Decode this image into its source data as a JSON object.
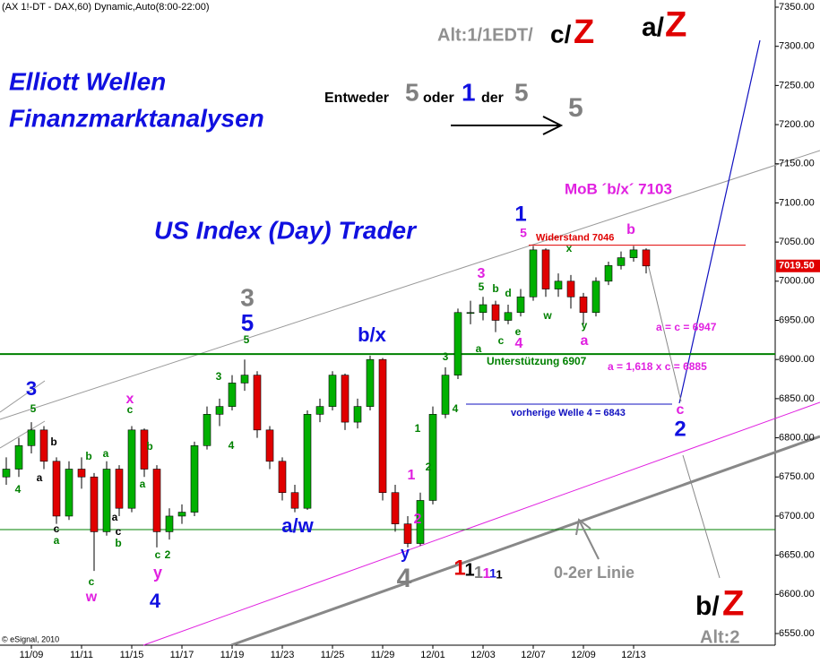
{
  "chart_data": {
    "type": "candlestick",
    "title": "(AX 1!-DT - DAX,60) Dynamic,Auto(8:00-22:00)",
    "credit": "© eSignal, 2010",
    "categories": [
      null,
      null,
      "11/09",
      null,
      null,
      null,
      "11/11",
      null,
      null,
      null,
      "11/15",
      null,
      null,
      null,
      "11/17",
      null,
      null,
      null,
      "11/19",
      null,
      null,
      null,
      "11/23",
      null,
      null,
      null,
      "11/25",
      null,
      null,
      null,
      "11/29",
      null,
      null,
      null,
      "12/01",
      null,
      null,
      null,
      "12/03",
      null,
      null,
      null,
      "12/07",
      null,
      null,
      null,
      "12/09",
      null,
      null,
      null,
      "12/13",
      null
    ],
    "open": [
      6750,
      6760,
      6790,
      6810,
      6770,
      6700,
      6760,
      6750,
      6680,
      6760,
      6710,
      6810,
      6760,
      6680,
      6700,
      6705,
      6790,
      6830,
      6840,
      6870,
      6880,
      6810,
      6770,
      6730,
      6710,
      6830,
      6840,
      6880,
      6820,
      6840,
      6900,
      6730,
      6690,
      6665,
      6720,
      6830,
      6880,
      6960,
      6960,
      6970,
      6950,
      6960,
      6980,
      7040,
      6990,
      7000,
      6980,
      6960,
      7000,
      7020,
      7030,
      7040
    ],
    "high": [
      6775,
      6800,
      6820,
      6815,
      6775,
      6770,
      6775,
      6755,
      6770,
      6765,
      6815,
      6812,
      6765,
      6710,
      6715,
      6795,
      6840,
      6850,
      6880,
      6900,
      6885,
      6815,
      6775,
      6740,
      6835,
      6850,
      6885,
      6882,
      6850,
      6905,
      6902,
      6740,
      6700,
      6730,
      6840,
      6890,
      6965,
      6975,
      6980,
      6975,
      6970,
      6990,
      7045,
      7042,
      7010,
      7008,
      6985,
      7005,
      7025,
      7038,
      7045,
      7042
    ],
    "low": [
      6740,
      6750,
      6780,
      6760,
      6690,
      6695,
      6735,
      6630,
      6675,
      6700,
      6705,
      6750,
      6660,
      6670,
      6690,
      6700,
      6785,
      6815,
      6835,
      6860,
      6800,
      6760,
      6720,
      6705,
      6708,
      6820,
      6835,
      6810,
      6812,
      6835,
      6720,
      6680,
      6660,
      6662,
      6715,
      6825,
      6875,
      6945,
      6950,
      6935,
      6945,
      6955,
      6975,
      6980,
      6980,
      6965,
      6945,
      6955,
      6995,
      7015,
      7025,
      7010
    ],
    "close": [
      6760,
      6790,
      6810,
      6770,
      6700,
      6760,
      6750,
      6680,
      6760,
      6710,
      6810,
      6760,
      6680,
      6700,
      6705,
      6790,
      6830,
      6840,
      6870,
      6880,
      6810,
      6770,
      6730,
      6710,
      6830,
      6840,
      6880,
      6820,
      6840,
      6900,
      6730,
      6690,
      6665,
      6720,
      6830,
      6880,
      6960,
      6960,
      6970,
      6950,
      6960,
      6980,
      7040,
      6990,
      7000,
      6980,
      6960,
      7000,
      7020,
      7030,
      7040,
      7019.5
    ],
    "last_value_label": "7019.50",
    "up_color": "#00b000",
    "down_color": "#e00000",
    "ylim": [
      6550,
      7350
    ],
    "yticks": [
      {
        "value": 6550,
        "label": "6550.00"
      },
      {
        "value": 6600,
        "label": "6600.00"
      },
      {
        "value": 6650,
        "label": "6650.00"
      },
      {
        "value": 6700,
        "label": "6700.00"
      },
      {
        "value": 6750,
        "label": "6750.00"
      },
      {
        "value": 6800,
        "label": "6800.00"
      },
      {
        "value": 6850,
        "label": "6850.00"
      },
      {
        "value": 6900,
        "label": "6900.00"
      },
      {
        "value": 6950,
        "label": "6950.00"
      },
      {
        "value": 7000,
        "label": "7000.00"
      },
      {
        "value": 7050,
        "label": "7050.00"
      },
      {
        "value": 7100,
        "label": "7100.00"
      },
      {
        "value": 7150,
        "label": "7150.00"
      },
      {
        "value": 7200,
        "label": "7200.00"
      },
      {
        "value": 7250,
        "label": "7250.00"
      },
      {
        "value": 7300,
        "label": "7300.00"
      },
      {
        "value": 7350,
        "label": "7350.00"
      }
    ],
    "grid": false,
    "levels": [
      {
        "label": "Widerstand 7046",
        "value": 7046,
        "color": "#e00000"
      },
      {
        "label": "Unterstützung 6907",
        "value": 6907,
        "color": "#008000"
      },
      {
        "label": "vorherige Welle 4 = 6843",
        "value": 6843,
        "color": "#1010c0"
      }
    ],
    "annotations": [
      {
        "text": "Elliott Wellen",
        "color": "#1010e0"
      },
      {
        "text": "Finanzmarktanalysen",
        "color": "#1010e0"
      },
      {
        "text": "US Index (Day) Trader",
        "color": "#1010e0"
      },
      {
        "text": "Alt:1/1EDT/",
        "color": "#909090"
      },
      {
        "text": "c/",
        "color": "#000000"
      },
      {
        "text": "Z",
        "color": "#e00000"
      },
      {
        "text": "a/",
        "color": "#000000"
      },
      {
        "text": "Z",
        "color": "#e00000"
      },
      {
        "text": "Entweder",
        "color": "#000000"
      },
      {
        "text": "5",
        "color": "#808080"
      },
      {
        "text": "oder",
        "color": "#000000"
      },
      {
        "text": "1",
        "color": "#1010e0"
      },
      {
        "text": "der",
        "color": "#000000"
      },
      {
        "text": "5",
        "color": "#808080"
      },
      {
        "text": "5",
        "color": "#808080"
      },
      {
        "text": "MoB ´b/x´ 7103",
        "color": "#e020e0"
      },
      {
        "text": "a = c = 6947",
        "color": "#e020e0"
      },
      {
        "text": "a = 1,618 x c = 6885",
        "color": "#e020e0"
      },
      {
        "text": "0-2er Linie",
        "color": "#909090"
      },
      {
        "text": "b/",
        "color": "#000000"
      },
      {
        "text": "Z",
        "color": "#e00000"
      },
      {
        "text": "Alt:2",
        "color": "#909090"
      },
      {
        "text": "3",
        "color": "#1010e0"
      },
      {
        "text": "5",
        "color": "#008000"
      },
      {
        "text": "4",
        "color": "#008000"
      },
      {
        "text": "a",
        "color": "#000000"
      },
      {
        "text": "b",
        "color": "#000000"
      },
      {
        "text": "b",
        "color": "#008000"
      },
      {
        "text": "a",
        "color": "#008000"
      },
      {
        "text": "c",
        "color": "#000000"
      },
      {
        "text": "a",
        "color": "#008000"
      },
      {
        "text": "c",
        "color": "#008000"
      },
      {
        "text": "w",
        "color": "#e020e0"
      },
      {
        "text": "a",
        "color": "#000000"
      },
      {
        "text": "c",
        "color": "#000000"
      },
      {
        "text": "b",
        "color": "#008000"
      },
      {
        "text": "x",
        "color": "#e020e0"
      },
      {
        "text": "c",
        "color": "#008000"
      },
      {
        "text": "b",
        "color": "#008000"
      },
      {
        "text": "a",
        "color": "#008000"
      },
      {
        "text": "c",
        "color": "#008000"
      },
      {
        "text": "2",
        "color": "#008000"
      },
      {
        "text": "y",
        "color": "#e020e0"
      },
      {
        "text": "4",
        "color": "#1010e0"
      },
      {
        "text": "3",
        "color": "#808080"
      },
      {
        "text": "5",
        "color": "#1010e0"
      },
      {
        "text": "5",
        "color": "#008000"
      },
      {
        "text": "3",
        "color": "#008000"
      },
      {
        "text": "4",
        "color": "#008000"
      },
      {
        "text": "a/w",
        "color": "#1010e0"
      },
      {
        "text": "b/x",
        "color": "#1010e0"
      },
      {
        "text": "1",
        "color": "#008000"
      },
      {
        "text": "2",
        "color": "#008000"
      },
      {
        "text": "1",
        "color": "#e020e0"
      },
      {
        "text": "2",
        "color": "#e020e0"
      },
      {
        "text": "y",
        "color": "#1010e0"
      },
      {
        "text": "4",
        "color": "#808080"
      },
      {
        "text": "3",
        "color": "#008000"
      },
      {
        "text": "4",
        "color": "#008000"
      },
      {
        "text": "3",
        "color": "#e020e0"
      },
      {
        "text": "5",
        "color": "#008000"
      },
      {
        "text": "b",
        "color": "#008000"
      },
      {
        "text": "d",
        "color": "#008000"
      },
      {
        "text": "a",
        "color": "#008000"
      },
      {
        "text": "c",
        "color": "#008000"
      },
      {
        "text": "e",
        "color": "#008000"
      },
      {
        "text": "4",
        "color": "#e020e0"
      },
      {
        "text": "1",
        "color": "#1010e0"
      },
      {
        "text": "5",
        "color": "#e020e0"
      },
      {
        "text": "x",
        "color": "#008000"
      },
      {
        "text": "w",
        "color": "#008000"
      },
      {
        "text": "y",
        "color": "#008000"
      },
      {
        "text": "a",
        "color": "#e020e0"
      },
      {
        "text": "b",
        "color": "#e020e0"
      },
      {
        "text": "c",
        "color": "#e020e0"
      },
      {
        "text": "2",
        "color": "#1010e0"
      },
      {
        "text": "1",
        "color": "#e00000"
      },
      {
        "text": "1",
        "color": "#000000"
      },
      {
        "text": "1",
        "color": "#808080"
      },
      {
        "text": "1",
        "color": "#e020e0"
      },
      {
        "text": "1",
        "color": "#1010e0"
      },
      {
        "text": "1",
        "color": "#000000"
      }
    ]
  }
}
